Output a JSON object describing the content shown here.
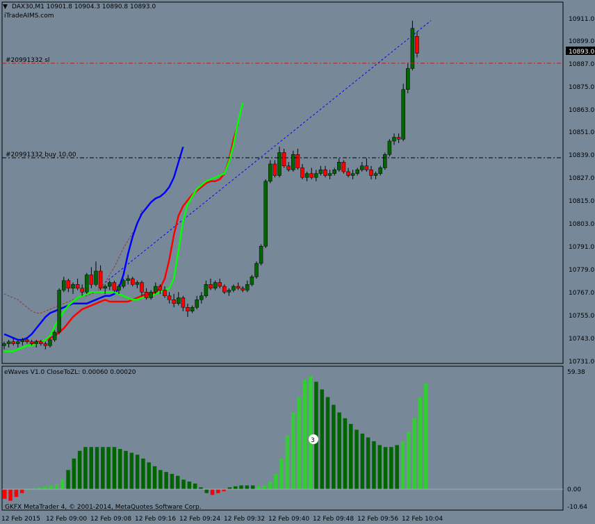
{
  "header": {
    "symbol_title": "DAX30,M1  10901.8 10904.3 10890.8 10893.0",
    "watermark": "iTradeAIMS.com"
  },
  "orders": {
    "sl_label": "#20991332 sl",
    "buy_label": "#20991332 buy 10.00"
  },
  "price_axis": {
    "ticks": [
      "10911.0",
      "10899.0",
      "10887.0",
      "10875.0",
      "10863.0",
      "10851.0",
      "10839.0",
      "10827.0",
      "10815.0",
      "10803.0",
      "10791.0",
      "10779.0",
      "10767.0",
      "10755.0",
      "10743.0",
      "10731.0"
    ],
    "current_price": "10893.0"
  },
  "indicator": {
    "label": "eWaves V1.0 CloseToZL: 0.00060 0.00020",
    "max_label": "59.38",
    "zero_label": "0.00",
    "min_label": "-10.64",
    "wave_number": "3"
  },
  "footer": {
    "copyright": "GKFX MetaTrader 4, © 2001-2014, MetaQuotes Software Corp."
  },
  "time_axis": {
    "labels": [
      "12 Feb 2015",
      "12 Feb 09:00",
      "12 Feb 09:08",
      "12 Feb 09:16",
      "12 Feb 09:24",
      "12 Feb 09:32",
      "12 Feb 09:40",
      "12 Feb 09:48",
      "12 Feb 09:56",
      "12 Feb 10:04"
    ]
  },
  "colors": {
    "background": "#778899",
    "bull_candle": "#006400",
    "bear_candle": "#ff0000",
    "ma_fast": "#00ff00",
    "ma_mid": "#ff0000",
    "ma_slow": "#0000ff",
    "wave_light": "#32cd32",
    "wave_dark": "#006400",
    "wave_negative": "#ff0000"
  },
  "chart_data": {
    "type": "candlestick",
    "symbol": "DAX30,M1",
    "ohlc": [
      [
        10740,
        10742,
        10738,
        10741
      ],
      [
        10741,
        10743,
        10739,
        10742
      ],
      [
        10742,
        10744,
        10740,
        10741
      ],
      [
        10741,
        10743,
        10739,
        10742
      ],
      [
        10742,
        10744,
        10740,
        10743
      ],
      [
        10743,
        10744,
        10741,
        10742
      ],
      [
        10742,
        10743,
        10740,
        10741
      ],
      [
        10741,
        10743,
        10739,
        10742
      ],
      [
        10742,
        10743,
        10740,
        10741
      ],
      [
        10741,
        10742,
        10738,
        10740
      ],
      [
        10740,
        10744,
        10739,
        10743
      ],
      [
        10743,
        10748,
        10742,
        10747
      ],
      [
        10747,
        10770,
        10746,
        10769
      ],
      [
        10769,
        10776,
        10768,
        10774
      ],
      [
        10774,
        10775,
        10768,
        10770
      ],
      [
        10770,
        10773,
        10767,
        10772
      ],
      [
        10772,
        10775,
        10769,
        10770
      ],
      [
        10770,
        10772,
        10766,
        10768
      ],
      [
        10768,
        10778,
        10767,
        10777
      ],
      [
        10777,
        10781,
        10770,
        10772
      ],
      [
        10772,
        10784,
        10771,
        10779
      ],
      [
        10779,
        10782,
        10769,
        10770
      ],
      [
        10770,
        10772,
        10767,
        10771
      ],
      [
        10771,
        10774,
        10769,
        10773
      ],
      [
        10773,
        10774,
        10768,
        10769
      ],
      [
        10769,
        10772,
        10767,
        10771
      ],
      [
        10771,
        10775,
        10770,
        10774
      ],
      [
        10774,
        10777,
        10772,
        10775
      ],
      [
        10775,
        10776,
        10771,
        10772
      ],
      [
        10772,
        10774,
        10770,
        10773
      ],
      [
        10773,
        10774,
        10766,
        10768
      ],
      [
        10768,
        10770,
        10764,
        10765
      ],
      [
        10765,
        10769,
        10764,
        10768
      ],
      [
        10768,
        10773,
        10767,
        10771
      ],
      [
        10771,
        10772,
        10767,
        10769
      ],
      [
        10769,
        10771,
        10765,
        10766
      ],
      [
        10766,
        10768,
        10762,
        10764
      ],
      [
        10764,
        10767,
        10760,
        10762
      ],
      [
        10762,
        10768,
        10761,
        10765
      ],
      [
        10765,
        10766,
        10758,
        10760
      ],
      [
        10760,
        10762,
        10755,
        10758
      ],
      [
        10758,
        10761,
        10757,
        10760
      ],
      [
        10760,
        10766,
        10759,
        10764
      ],
      [
        10764,
        10768,
        10762,
        10766
      ],
      [
        10766,
        10774,
        10765,
        10772
      ],
      [
        10772,
        10775,
        10769,
        10770
      ],
      [
        10770,
        10774,
        10769,
        10773
      ],
      [
        10773,
        10775,
        10770,
        10771
      ],
      [
        10771,
        10772,
        10767,
        10768
      ],
      [
        10768,
        10770,
        10766,
        10769
      ],
      [
        10769,
        10772,
        10768,
        10771
      ],
      [
        10771,
        10773,
        10769,
        10770
      ],
      [
        10770,
        10771,
        10768,
        10769
      ],
      [
        10769,
        10774,
        10768,
        10772
      ],
      [
        10772,
        10777,
        10771,
        10776
      ],
      [
        10776,
        10784,
        10775,
        10783
      ],
      [
        10783,
        10793,
        10782,
        10792
      ],
      [
        10792,
        10827,
        10791,
        10826
      ],
      [
        10826,
        10837,
        10825,
        10835
      ],
      [
        10835,
        10837,
        10828,
        10829
      ],
      [
        10829,
        10844,
        10828,
        10841
      ],
      [
        10841,
        10843,
        10833,
        10834
      ],
      [
        10834,
        10836,
        10831,
        10832
      ],
      [
        10832,
        10842,
        10831,
        10840
      ],
      [
        10840,
        10843,
        10832,
        10833
      ],
      [
        10833,
        10835,
        10827,
        10828
      ],
      [
        10828,
        10831,
        10826,
        10830
      ],
      [
        10830,
        10833,
        10827,
        10828
      ],
      [
        10828,
        10832,
        10826,
        10830
      ],
      [
        10830,
        10834,
        10829,
        10832
      ],
      [
        10832,
        10834,
        10828,
        10829
      ],
      [
        10829,
        10832,
        10827,
        10830
      ],
      [
        10830,
        10833,
        10829,
        10832
      ],
      [
        10832,
        10838,
        10831,
        10836
      ],
      [
        10836,
        10837,
        10830,
        10831
      ],
      [
        10831,
        10833,
        10828,
        10829
      ],
      [
        10829,
        10832,
        10827,
        10830
      ],
      [
        10830,
        10833,
        10829,
        10832
      ],
      [
        10832,
        10836,
        10831,
        10834
      ],
      [
        10834,
        10838,
        10831,
        10832
      ],
      [
        10832,
        10834,
        10827,
        10829
      ],
      [
        10829,
        10831,
        10827,
        10830
      ],
      [
        10830,
        10834,
        10829,
        10833
      ],
      [
        10833,
        10841,
        10832,
        10840
      ],
      [
        10840,
        10848,
        10839,
        10847
      ],
      [
        10847,
        10851,
        10845,
        10849
      ],
      [
        10849,
        10851,
        10846,
        10848
      ],
      [
        10848,
        10877,
        10847,
        10874
      ],
      [
        10874,
        10888,
        10872,
        10885
      ],
      [
        10885,
        10910,
        10884,
        10906
      ],
      [
        10901.8,
        10904.3,
        10890.8,
        10893.0
      ]
    ],
    "ma_fast": [
      10737,
      10737,
      10737,
      10738,
      10739,
      10740,
      10740,
      10741,
      10742,
      10743,
      10745,
      10750,
      10754,
      10758,
      10761,
      10763,
      10765,
      10766,
      10767,
      10768,
      10768,
      10768,
      10768,
      10768,
      10768,
      10767,
      10766,
      10765,
      10764,
      10764,
      10765,
      10765,
      10766,
      10767,
      10768,
      10769,
      10770,
      10775,
      10790,
      10805,
      10814,
      10818,
      10822,
      10824,
      10826,
      10827,
      10828,
      10829,
      10830,
      10836,
      10845,
      10857,
      10867
    ],
    "ma_mid": [
      10741,
      10742,
      10742,
      10743,
      10744,
      10745,
      10747,
      10749,
      10752,
      10755,
      10757,
      10759,
      10760,
      10761,
      10762,
      10763,
      10764,
      10763,
      10763,
      10763,
      10763,
      10763,
      10764,
      10765,
      10766,
      10767,
      10767,
      10768,
      10770,
      10775,
      10785,
      10798,
      10808,
      10813,
      10816,
      10819,
      10821,
      10823,
      10825,
      10826,
      10826,
      10827,
      10830,
      10837,
      10848,
      10856
    ],
    "ma_slow": [
      10746,
      10745,
      10744,
      10743,
      10743,
      10744,
      10746,
      10749,
      10752,
      10755,
      10757,
      10758,
      10759,
      10760,
      10761,
      10762,
      10762,
      10762,
      10762,
      10763,
      10764,
      10765,
      10766,
      10766,
      10767,
      10770,
      10777,
      10788,
      10797,
      10804,
      10809,
      10812,
      10815,
      10817,
      10818,
      10820,
      10823,
      10828,
      10836,
      10844
    ],
    "ma_long": [
      10767,
      10766,
      10765,
      10764,
      10762,
      10760,
      10758,
      10757,
      10757,
      10758,
      10759,
      10760,
      10761,
      10762,
      10763,
      10764,
      10765,
      10766,
      10766,
      10767,
      10768,
      10770,
      10773,
      10777,
      10781,
      10786,
      10791,
      10795,
      10799,
      10803,
      10811
    ],
    "waves": [
      -5,
      -6,
      -4,
      -2,
      0,
      0.5,
      1,
      1.5,
      2,
      2.5,
      5,
      10,
      16,
      20,
      22,
      22,
      22,
      22,
      22,
      22,
      21,
      20,
      19,
      18,
      16,
      14,
      12,
      10,
      9,
      8,
      7,
      5,
      4,
      3,
      1,
      -2,
      -3,
      -2,
      -1,
      1,
      1.5,
      2,
      2,
      2,
      1.5,
      2,
      4,
      8,
      16,
      28,
      40,
      48,
      57,
      59,
      56,
      52,
      48,
      44,
      40,
      37,
      34,
      31,
      29,
      27,
      25,
      23,
      22,
      22,
      23,
      25,
      30,
      37,
      48,
      55
    ]
  }
}
